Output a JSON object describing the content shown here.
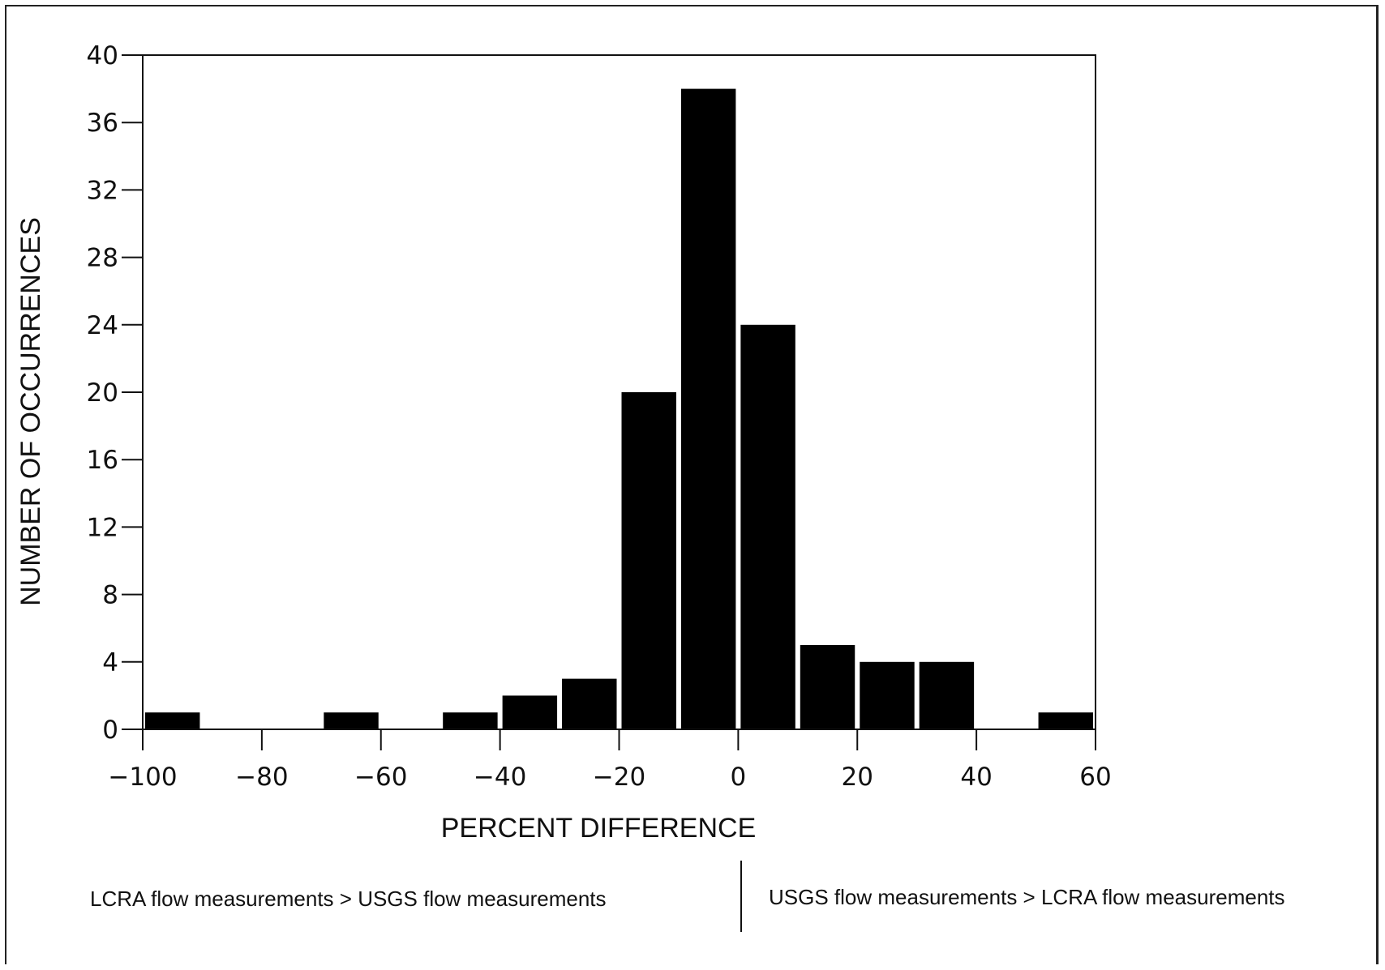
{
  "chart_data": {
    "type": "bar",
    "xlabel": "PERCENT DIFFERENCE",
    "ylabel": "NUMBER OF OCCURRENCES",
    "xlim": [
      -100,
      60
    ],
    "ylim": [
      0,
      40
    ],
    "xticks": [
      -100,
      -80,
      -60,
      -40,
      -20,
      0,
      20,
      40,
      60
    ],
    "xtick_labels": [
      "−100",
      "−80",
      "−60",
      "−40",
      "−20",
      "0",
      "20",
      "40",
      "60"
    ],
    "yticks": [
      0,
      4,
      8,
      12,
      16,
      20,
      24,
      28,
      32,
      36,
      40
    ],
    "ytick_labels": [
      "0",
      "4",
      "8",
      "12",
      "16",
      "20",
      "24",
      "28",
      "32",
      "36",
      "40"
    ],
    "bins": [
      {
        "from": -100,
        "to": -90,
        "value": 1
      },
      {
        "from": -90,
        "to": -80,
        "value": 0
      },
      {
        "from": -80,
        "to": -70,
        "value": 0
      },
      {
        "from": -70,
        "to": -60,
        "value": 1
      },
      {
        "from": -60,
        "to": -50,
        "value": 0
      },
      {
        "from": -50,
        "to": -40,
        "value": 1
      },
      {
        "from": -40,
        "to": -30,
        "value": 2
      },
      {
        "from": -30,
        "to": -20,
        "value": 3
      },
      {
        "from": -20,
        "to": -10,
        "value": 20
      },
      {
        "from": -10,
        "to": 0,
        "value": 38
      },
      {
        "from": 0,
        "to": 10,
        "value": 24
      },
      {
        "from": 10,
        "to": 20,
        "value": 5
      },
      {
        "from": 20,
        "to": 30,
        "value": 4
      },
      {
        "from": 30,
        "to": 40,
        "value": 4
      },
      {
        "from": 40,
        "to": 50,
        "value": 0
      },
      {
        "from": 50,
        "to": 60,
        "value": 1
      }
    ],
    "bar_color": "#000000",
    "grid": false,
    "legend": "none"
  },
  "notes": {
    "left": "LCRA flow measurements > USGS flow measurements",
    "right": "USGS flow measurements > LCRA flow measurements"
  }
}
